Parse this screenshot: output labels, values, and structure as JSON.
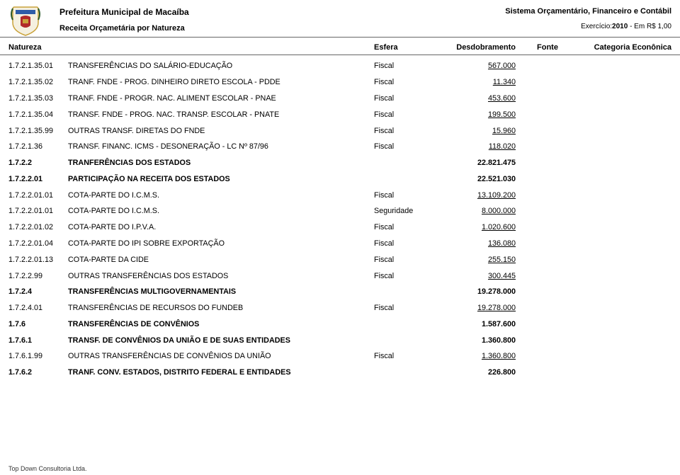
{
  "header": {
    "org_title": "Prefeitura Municipal de Macaíba",
    "sub_title": "Receita Orçametária por Natureza",
    "sys_title": "Sistema Orçamentário, Financeiro e Contábil",
    "exercicio_label": "Exercício:",
    "exercicio_year": "2010",
    "exercicio_unit": " - Em R$ 1,00"
  },
  "columns": {
    "natureza": "Natureza",
    "esfera": "Esfera",
    "desdobramento": "Desdobramento",
    "fonte": "Fonte",
    "categoria": "Categoria Econônica"
  },
  "rows": [
    {
      "code": "1.7.2.1.35.01",
      "desc": "TRANSFERÊNCIAS DO SALÁRIO-EDUCAÇÃO",
      "esfera": "Fiscal",
      "desd": "567.000",
      "bold": false
    },
    {
      "code": "1.7.2.1.35.02",
      "desc": "TRANF. FNDE - PROG. DINHEIRO DIRETO ESCOLA - PDDE",
      "esfera": "Fiscal",
      "desd": "11.340",
      "bold": false
    },
    {
      "code": "1.7.2.1.35.03",
      "desc": "TRANF. FNDE - PROGR. NAC. ALIMENT ESCOLAR - PNAE",
      "esfera": "Fiscal",
      "desd": "453.600",
      "bold": false
    },
    {
      "code": "1.7.2.1.35.04",
      "desc": "TRANSF. FNDE - PROG. NAC. TRANSP. ESCOLAR - PNATE",
      "esfera": "Fiscal",
      "desd": "199.500",
      "bold": false
    },
    {
      "code": "1.7.2.1.35.99",
      "desc": "OUTRAS TRANSF. DIRETAS DO FNDE",
      "esfera": "Fiscal",
      "desd": "15.960",
      "bold": false
    },
    {
      "code": "1.7.2.1.36",
      "desc": "TRANSF. FINANC. ICMS - DESONERAÇÃO - LC Nº 87/96",
      "esfera": "Fiscal",
      "desd": "118.020",
      "bold": false
    },
    {
      "code": "1.7.2.2",
      "desc": "TRANFERÊNCIAS DOS ESTADOS",
      "esfera": "",
      "desd": "22.821.475",
      "bold": true
    },
    {
      "code": "1.7.2.2.01",
      "desc": "PARTICIPAÇÃO NA RECEITA DOS ESTADOS",
      "esfera": "",
      "desd": "22.521.030",
      "bold": true
    },
    {
      "code": "1.7.2.2.01.01",
      "desc": "COTA-PARTE DO I.C.M.S.",
      "esfera": "Fiscal",
      "desd": "13.109.200",
      "bold": false
    },
    {
      "code": "1.7.2.2.01.01",
      "desc": "COTA-PARTE DO I.C.M.S.",
      "esfera": "Seguridade",
      "desd": "8.000.000",
      "bold": false
    },
    {
      "code": "1.7.2.2.01.02",
      "desc": "COTA-PARTE DO I.P.V.A.",
      "esfera": "Fiscal",
      "desd": "1.020.600",
      "bold": false
    },
    {
      "code": "1.7.2.2.01.04",
      "desc": "COTA-PARTE DO IPI SOBRE EXPORTAÇÃO",
      "esfera": "Fiscal",
      "desd": "136.080",
      "bold": false
    },
    {
      "code": "1.7.2.2.01.13",
      "desc": "COTA-PARTE DA CIDE",
      "esfera": "Fiscal",
      "desd": "255.150",
      "bold": false
    },
    {
      "code": "1.7.2.2.99",
      "desc": "OUTRAS TRANSFERÊNCIAS DOS ESTADOS",
      "esfera": "Fiscal",
      "desd": "300.445",
      "bold": false
    },
    {
      "code": "1.7.2.4",
      "desc": "TRANSFERÊNCIAS MULTIGOVERNAMENTAIS",
      "esfera": "",
      "desd": "19.278.000",
      "bold": true
    },
    {
      "code": "1.7.2.4.01",
      "desc": "TRANSFERÊNCIAS DE RECURSOS DO FUNDEB",
      "esfera": "Fiscal",
      "desd": "19.278.000",
      "bold": false
    },
    {
      "code": "1.7.6",
      "desc": "TRANSFERÊNCIAS DE CONVÊNIOS",
      "esfera": "",
      "desd": "1.587.600",
      "bold": true
    },
    {
      "code": "1.7.6.1",
      "desc": "TRANSF. DE CONVÊNIOS DA UNIÃO E DE SUAS ENTIDADES",
      "esfera": "",
      "desd": "1.360.800",
      "bold": true
    },
    {
      "code": "1.7.6.1.99",
      "desc": "OUTRAS TRANSFERÊNCIAS DE CONVÊNIOS DA UNIÃO",
      "esfera": "Fiscal",
      "desd": "1.360.800",
      "bold": false
    },
    {
      "code": "1.7.6.2",
      "desc": "TRANF. CONV. ESTADOS, DISTRITO FEDERAL E ENTIDADES",
      "esfera": "",
      "desd": "226.800",
      "bold": true
    }
  ],
  "footer": "Top Down Consultoria Ltda.",
  "colors": {
    "text": "#000000",
    "background": "#ffffff",
    "border": "#666666",
    "logo_shield": "#c9a23a",
    "logo_blue": "#2e5ca8",
    "logo_red": "#b12a2a"
  }
}
